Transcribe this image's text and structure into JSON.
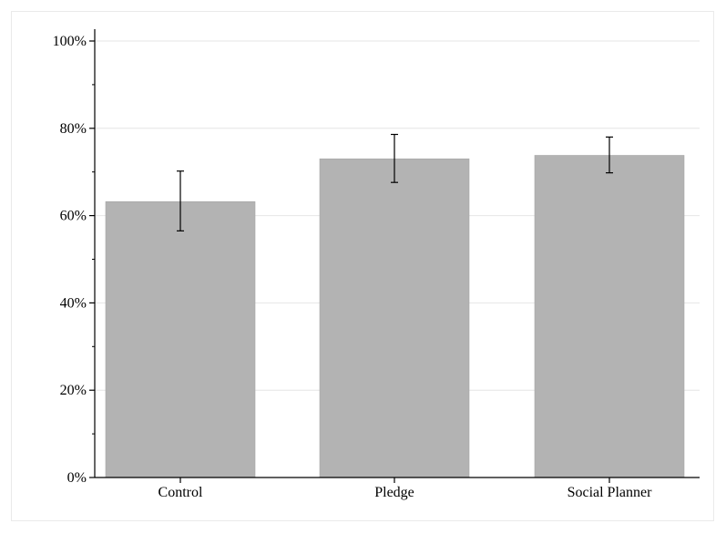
{
  "chart_data": {
    "type": "bar",
    "title": "",
    "xlabel": "",
    "ylabel": "",
    "categories": [
      "Control",
      "Pledge",
      "Social Planner"
    ],
    "values": [
      63.2,
      73.0,
      73.8
    ],
    "error_low": [
      56.5,
      67.6,
      69.8
    ],
    "error_high": [
      70.2,
      78.6,
      78.0
    ],
    "ylim": [
      0,
      100
    ],
    "yticks": [
      0,
      20,
      40,
      60,
      80,
      100
    ],
    "ytick_labels": [
      "0%",
      "20%",
      "40%",
      "60%",
      "80%",
      "100%"
    ],
    "minor_ticks": [
      10,
      30,
      50,
      70,
      90
    ],
    "grid": true,
    "legend": "none",
    "colors": {
      "bar": "#b3b3b3",
      "bar_edge": "#a6a6a6",
      "error_bar": "#000000",
      "grid": "#e6e6e6",
      "axis": "#000000",
      "frame": "#eaeaea"
    }
  }
}
